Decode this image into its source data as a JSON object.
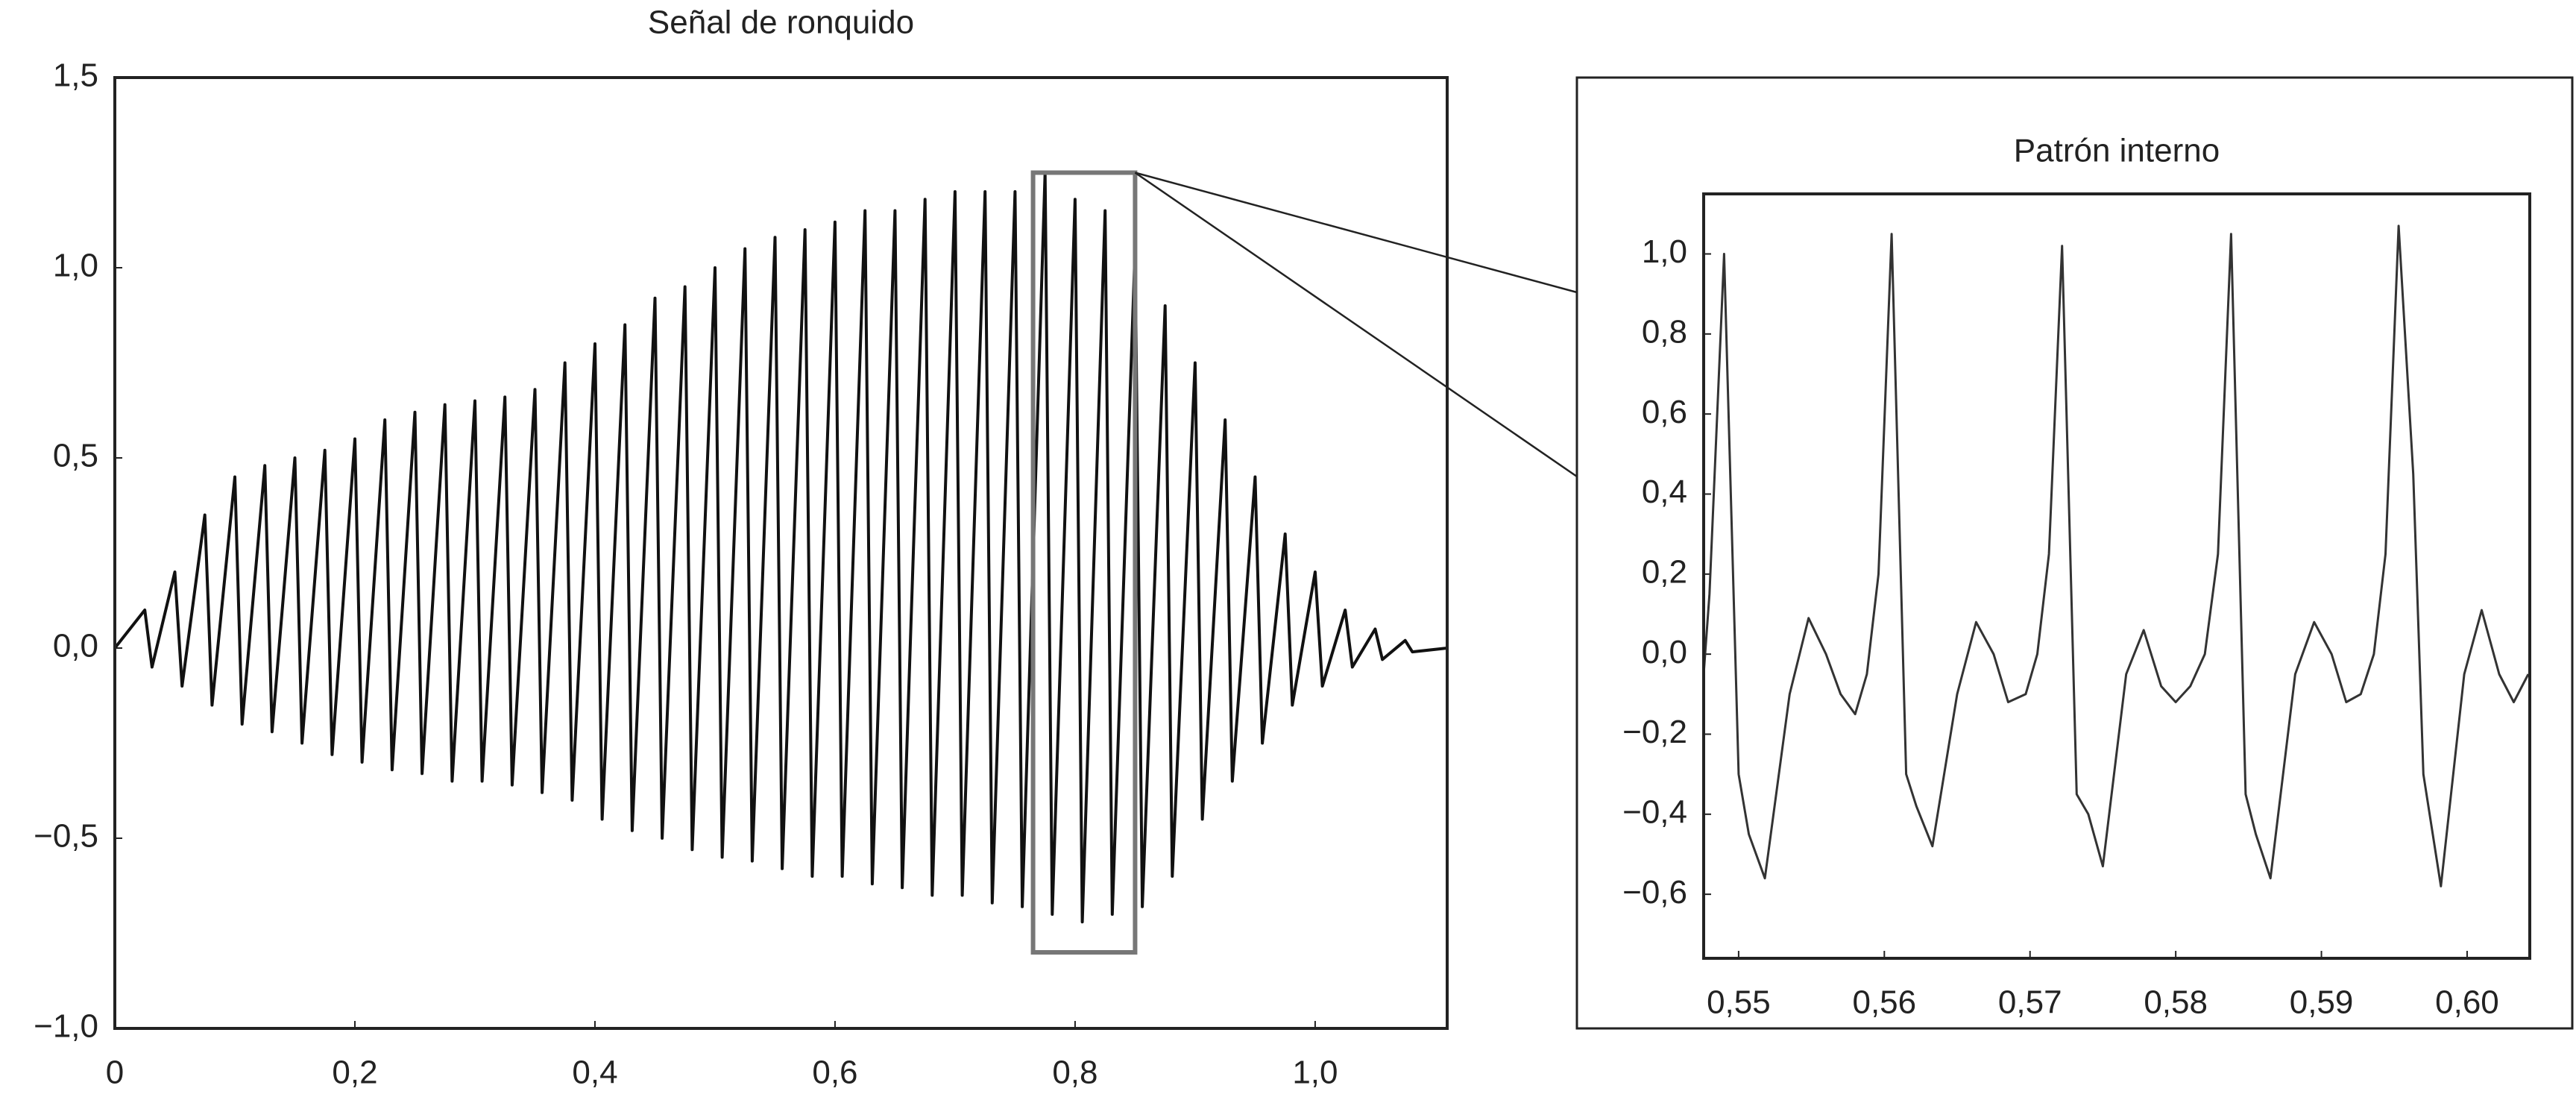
{
  "chart_data": [
    {
      "type": "line",
      "title": "Señal de ronquido",
      "color": "#111111",
      "xlim": [
        0,
        1.11
      ],
      "ylim": [
        -1,
        1.5
      ],
      "xticks": [
        0,
        {
          "value": 0.2,
          "label": "0,2"
        },
        {
          "value": 0.4,
          "label": "0,4"
        },
        {
          "value": 0.6,
          "label": "0,6"
        },
        {
          "value": 0.8,
          "label": "0,8"
        },
        {
          "value": 1.0,
          "label": "1,0"
        }
      ],
      "yticks": [
        {
          "value": -1,
          "label": "−1,0"
        },
        {
          "value": -0.5,
          "label": "−0,5"
        },
        {
          "value": 0,
          "label": "0,0"
        },
        {
          "value": 0.5,
          "label": "0,5"
        },
        {
          "value": 1.0,
          "label": "1,0"
        },
        {
          "value": 1.5,
          "label": "1,5"
        }
      ],
      "highlight": {
        "x": [
          0.765,
          0.85
        ],
        "y": [
          -0.8,
          1.25
        ]
      },
      "x": [
        0,
        0.025,
        0.031,
        0.05,
        0.056,
        0.075,
        0.081,
        0.1,
        0.106,
        0.125,
        0.131,
        0.15,
        0.156,
        0.175,
        0.181,
        0.2,
        0.206,
        0.225,
        0.231,
        0.25,
        0.256,
        0.275,
        0.281,
        0.3,
        0.306,
        0.325,
        0.331,
        0.35,
        0.356,
        0.375,
        0.381,
        0.4,
        0.406,
        0.425,
        0.431,
        0.45,
        0.456,
        0.475,
        0.481,
        0.5,
        0.506,
        0.525,
        0.531,
        0.55,
        0.556,
        0.575,
        0.581,
        0.6,
        0.606,
        0.625,
        0.631,
        0.65,
        0.656,
        0.675,
        0.681,
        0.7,
        0.706,
        0.725,
        0.731,
        0.75,
        0.756,
        0.775,
        0.781,
        0.8,
        0.806,
        0.825,
        0.831,
        0.85,
        0.856,
        0.875,
        0.881,
        0.9,
        0.906,
        0.925,
        0.931,
        0.95,
        0.956,
        0.975,
        0.981,
        1.0,
        1.006,
        1.025,
        1.031,
        1.05,
        1.056,
        1.075,
        1.081,
        1.11
      ],
      "values": [
        0,
        0.1,
        -0.05,
        0.2,
        -0.1,
        0.35,
        -0.15,
        0.45,
        -0.2,
        0.48,
        -0.22,
        0.5,
        -0.25,
        0.52,
        -0.28,
        0.55,
        -0.3,
        0.6,
        -0.32,
        0.62,
        -0.33,
        0.64,
        -0.35,
        0.65,
        -0.35,
        0.66,
        -0.36,
        0.68,
        -0.38,
        0.75,
        -0.4,
        0.8,
        -0.45,
        0.85,
        -0.48,
        0.92,
        -0.5,
        0.95,
        -0.53,
        1.0,
        -0.55,
        1.05,
        -0.56,
        1.08,
        -0.58,
        1.1,
        -0.6,
        1.12,
        -0.6,
        1.15,
        -0.62,
        1.15,
        -0.63,
        1.18,
        -0.65,
        1.2,
        -0.65,
        1.2,
        -0.67,
        1.2,
        -0.68,
        1.25,
        -0.7,
        1.18,
        -0.72,
        1.15,
        -0.7,
        1.05,
        -0.68,
        0.9,
        -0.6,
        0.75,
        -0.45,
        0.6,
        -0.35,
        0.45,
        -0.25,
        0.3,
        -0.15,
        0.2,
        -0.1,
        0.1,
        -0.05,
        0.05,
        -0.03,
        0.02,
        -0.01,
        0
      ]
    },
    {
      "type": "line",
      "title": "Patrón interno",
      "color": "#333333",
      "xlim": [
        0.5476,
        0.6043
      ],
      "ylim": [
        -0.76,
        1.15
      ],
      "xticks": [
        {
          "value": 0.55,
          "label": "0,55"
        },
        {
          "value": 0.56,
          "label": "0,56"
        },
        {
          "value": 0.57,
          "label": "0,57"
        },
        {
          "value": 0.58,
          "label": "0,58"
        },
        {
          "value": 0.59,
          "label": "0,59"
        },
        {
          "value": 0.6,
          "label": "0,60"
        }
      ],
      "yticks": [
        {
          "value": -0.6,
          "label": "−0,6"
        },
        {
          "value": -0.4,
          "label": "−0,4"
        },
        {
          "value": -0.2,
          "label": "−0,2"
        },
        {
          "value": 0,
          "label": "0,0"
        },
        {
          "value": 0.2,
          "label": "0,2"
        },
        {
          "value": 0.4,
          "label": "0,4"
        },
        {
          "value": 0.6,
          "label": "0,6"
        },
        {
          "value": 0.8,
          "label": "0,8"
        },
        {
          "value": 1.0,
          "label": "1,0"
        }
      ],
      "x": [
        0.5476,
        0.548,
        0.549,
        0.55,
        0.5507,
        0.5518,
        0.5535,
        0.5548,
        0.556,
        0.557,
        0.558,
        0.5588,
        0.5596,
        0.5605,
        0.5615,
        0.5622,
        0.5633,
        0.565,
        0.5663,
        0.5675,
        0.5685,
        0.5697,
        0.5705,
        0.5713,
        0.5722,
        0.5732,
        0.574,
        0.575,
        0.5766,
        0.5778,
        0.579,
        0.58,
        0.581,
        0.582,
        0.5829,
        0.5838,
        0.5848,
        0.5855,
        0.5865,
        0.5882,
        0.5895,
        0.5907,
        0.5917,
        0.5927,
        0.5936,
        0.5944,
        0.5953,
        0.5963,
        0.597,
        0.5982,
        0.5998,
        0.601,
        0.6022,
        0.6032,
        0.6042
      ],
      "values": [
        -0.05,
        0.15,
        1.0,
        -0.3,
        -0.45,
        -0.56,
        -0.1,
        0.09,
        0.0,
        -0.1,
        -0.15,
        -0.05,
        0.2,
        1.05,
        -0.3,
        -0.38,
        -0.48,
        -0.1,
        0.08,
        0.0,
        -0.12,
        -0.1,
        0.0,
        0.25,
        1.02,
        -0.35,
        -0.4,
        -0.53,
        -0.05,
        0.06,
        -0.08,
        -0.12,
        -0.08,
        0.0,
        0.25,
        1.05,
        -0.35,
        -0.45,
        -0.56,
        -0.05,
        0.08,
        0.0,
        -0.12,
        -0.1,
        0.0,
        0.25,
        1.07,
        0.45,
        -0.3,
        -0.58,
        -0.05,
        0.11,
        -0.05,
        -0.12,
        -0.05
      ]
    }
  ]
}
